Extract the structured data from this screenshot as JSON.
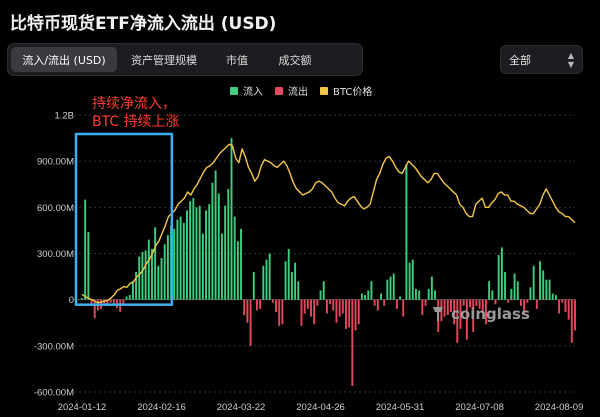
{
  "header": {
    "title": "比特币现货ETF净流入流出 (USD)"
  },
  "tabs": [
    {
      "label": "流入/流出 (USD)",
      "active": true
    },
    {
      "label": "资产管理规模",
      "active": false
    },
    {
      "label": "市值",
      "active": false
    },
    {
      "label": "成交额",
      "active": false
    }
  ],
  "filter": {
    "selected": "全部",
    "icon": "chevron-updown-icon"
  },
  "legend": [
    {
      "label": "流入",
      "color": "#3ecf7e"
    },
    {
      "label": "流出",
      "color": "#e8485d"
    },
    {
      "label": "BTC价格",
      "color": "#f4c64a"
    }
  ],
  "annotation": {
    "line1": "持续净流入，",
    "line2": "BTC 持续上涨",
    "color": "#ff3b30",
    "box_color": "#3ab0f0"
  },
  "watermark": {
    "text": "coinglass"
  },
  "chart_data": {
    "type": "bar",
    "title": "比特币现货ETF净流入流出 (USD)",
    "xlabel": "",
    "ylabel": "",
    "y_ticks": [
      "1.2B",
      "900.00M",
      "600.00M",
      "300.00M",
      "0",
      "-300.00M",
      "-600.00M"
    ],
    "y_tick_values": [
      1200,
      900,
      600,
      300,
      0,
      -300,
      -600
    ],
    "ylim": [
      -600,
      1200
    ],
    "y_units": "millions USD",
    "x_ticks": [
      "2024-01-12",
      "2024-02-16",
      "2024-03-22",
      "2024-04-26",
      "2024-05-31",
      "2024-07-08",
      "2024-08-09"
    ],
    "x_tick_indices": [
      0,
      25,
      50,
      75,
      100,
      125,
      150
    ],
    "grid": true,
    "legend_position": "top-center",
    "series": [
      {
        "name": "流入/流出",
        "values": [
          10,
          650,
          440,
          -35,
          -120,
          -70,
          -60,
          -30,
          -25,
          -20,
          -40,
          -55,
          -80,
          -30,
          20,
          30,
          120,
          180,
          280,
          310,
          320,
          390,
          330,
          470,
          220,
          270,
          360,
          420,
          480,
          460,
          520,
          540,
          500,
          580,
          640,
          660,
          600,
          610,
          430,
          580,
          620,
          760,
          840,
          690,
          430,
          610,
          720,
          1050,
          540,
          380,
          460,
          -100,
          -150,
          -300,
          180,
          -70,
          -60,
          220,
          260,
          300,
          -20,
          -80,
          -170,
          -160,
          250,
          330,
          180,
          240,
          120,
          -170,
          -90,
          -60,
          -110,
          -160,
          -40,
          60,
          120,
          -90,
          -30,
          -70,
          -150,
          -110,
          -90,
          -190,
          -180,
          -560,
          -200,
          -160,
          40,
          30,
          60,
          120,
          -40,
          -70,
          40,
          -40,
          130,
          150,
          170,
          -60,
          20,
          -110,
          880,
          240,
          260,
          70,
          60,
          -100,
          -40,
          70,
          150,
          60,
          -210,
          -140,
          -110,
          -100,
          -80,
          -160,
          -280,
          -190,
          -40,
          -260,
          -50,
          -210,
          -40,
          -60,
          -80,
          -160,
          120,
          60,
          -30,
          290,
          340,
          180,
          -20,
          70,
          170,
          120,
          -40,
          -100,
          -20,
          80,
          220,
          -60,
          250,
          190,
          130,
          130,
          40,
          30,
          -90,
          -20,
          -80,
          -130,
          -280,
          -200
        ],
        "colors": {
          "positive": "#3ecf7e",
          "negative": "#e8485d"
        }
      },
      {
        "name": "BTC价格",
        "type": "line",
        "axis": "separate (not labeled)",
        "scale_note": "price line plotted against the same visual grid; values shown in chart-axis-equivalent units (M)",
        "values": [
          35,
          20,
          10,
          0,
          -10,
          -20,
          -15,
          -10,
          -5,
          10,
          30,
          60,
          70,
          85,
          80,
          105,
          115,
          145,
          165,
          190,
          230,
          260,
          300,
          350,
          380,
          430,
          480,
          540,
          560,
          580,
          620,
          640,
          660,
          700,
          680,
          720,
          750,
          790,
          830,
          860,
          870,
          890,
          920,
          950,
          970,
          990,
          1010,
          1000,
          920,
          890,
          980,
          930,
          860,
          820,
          770,
          800,
          870,
          910,
          900,
          890,
          870,
          860,
          880,
          900,
          870,
          820,
          760,
          720,
          700,
          680,
          690,
          700,
          720,
          760,
          770,
          760,
          740,
          720,
          700,
          660,
          630,
          620,
          610,
          640,
          660,
          670,
          640,
          610,
          590,
          600,
          620,
          700,
          780,
          820,
          880,
          920,
          930,
          900,
          860,
          830,
          820,
          860,
          900,
          880,
          860,
          830,
          800,
          780,
          760,
          780,
          820,
          820,
          790,
          760,
          740,
          720,
          700,
          680,
          620,
          600,
          560,
          540,
          540,
          620,
          640,
          660,
          600,
          600,
          630,
          650,
          690,
          700,
          680,
          680,
          640,
          640,
          620,
          610,
          600,
          580,
          560,
          560,
          590,
          620,
          680,
          720,
          680,
          640,
          600,
          570,
          560,
          540,
          540,
          520,
          500
        ]
      }
    ]
  }
}
